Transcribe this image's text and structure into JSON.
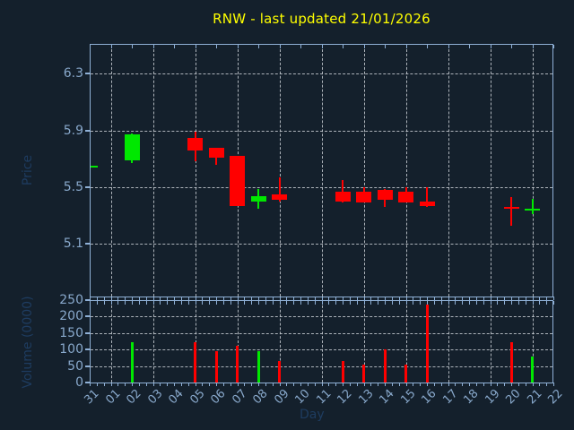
{
  "title": {
    "text": "RNW - last updated 21/01/2026",
    "color": "#ffff00"
  },
  "colors": {
    "background": "#14202c",
    "frame": "#8fb0d6",
    "grid": "#c8ced4",
    "tick_label": "#88a8cb",
    "axis_title": "#1e3c60",
    "up": "#00e800",
    "down": "#ff0000"
  },
  "chart_data": {
    "type": "candlestick+volume",
    "title": "RNW - last updated 21/01/2026",
    "xlabel": "Day",
    "x_categories": [
      "31",
      "01",
      "02",
      "03",
      "04",
      "05",
      "06",
      "07",
      "08",
      "09",
      "10",
      "11",
      "12",
      "13",
      "14",
      "15",
      "16",
      "17",
      "18",
      "19",
      "20",
      "21",
      "22"
    ],
    "grid": "dashed; vertical line every 2nd day (odd labels), horizontal at each y tick",
    "legend": "none",
    "price_panel": {
      "ylabel": "Price",
      "yticks": [
        {
          "label": "6.3",
          "value": 6.3
        },
        {
          "label": "5.9",
          "value": 5.9
        },
        {
          "label": "5.5",
          "value": 5.5
        },
        {
          "label": "5.1",
          "value": 5.1
        }
      ],
      "ylim": [
        4.73,
        6.51
      ]
    },
    "volume_panel": {
      "ylabel": "Volume (0000)",
      "yticks": [
        {
          "label": "250",
          "value": 250
        },
        {
          "label": "200",
          "value": 200
        },
        {
          "label": "150",
          "value": 150
        },
        {
          "label": "100",
          "value": 100
        },
        {
          "label": "50",
          "value": 50
        },
        {
          "label": "0",
          "value": 0
        }
      ],
      "ylim": [
        0,
        250
      ]
    },
    "candles": [
      {
        "day": "31",
        "open": 5.64,
        "high": 5.65,
        "low": 5.64,
        "close": 5.65,
        "volume": 0
      },
      {
        "day": "02",
        "open": 5.69,
        "high": 5.88,
        "low": 5.67,
        "close": 5.87,
        "volume": 123
      },
      {
        "day": "05",
        "open": 5.85,
        "high": 5.89,
        "low": 5.68,
        "close": 5.76,
        "volume": 122
      },
      {
        "day": "06",
        "open": 5.78,
        "high": 5.78,
        "low": 5.66,
        "close": 5.71,
        "volume": 94
      },
      {
        "day": "07",
        "open": 5.72,
        "high": 5.72,
        "low": 5.37,
        "close": 5.37,
        "volume": 112
      },
      {
        "day": "08",
        "open": 5.4,
        "high": 5.49,
        "low": 5.35,
        "close": 5.44,
        "volume": 96
      },
      {
        "day": "09",
        "open": 5.45,
        "high": 5.57,
        "low": 5.4,
        "close": 5.41,
        "volume": 64
      },
      {
        "day": "12",
        "open": 5.47,
        "high": 5.55,
        "low": 5.39,
        "close": 5.4,
        "volume": 66
      },
      {
        "day": "13",
        "open": 5.47,
        "high": 5.5,
        "low": 5.39,
        "close": 5.39,
        "volume": 55
      },
      {
        "day": "14",
        "open": 5.48,
        "high": 5.49,
        "low": 5.36,
        "close": 5.41,
        "volume": 100
      },
      {
        "day": "15",
        "open": 5.47,
        "high": 5.5,
        "low": 5.39,
        "close": 5.39,
        "volume": 54
      },
      {
        "day": "16",
        "open": 5.4,
        "high": 5.5,
        "low": 5.36,
        "close": 5.37,
        "volume": 236
      },
      {
        "day": "20",
        "open": 5.36,
        "high": 5.43,
        "low": 5.23,
        "close": 5.35,
        "volume": 122
      },
      {
        "day": "21",
        "open": 5.34,
        "high": 5.42,
        "low": 5.31,
        "close": 5.35,
        "volume": 78
      }
    ]
  }
}
